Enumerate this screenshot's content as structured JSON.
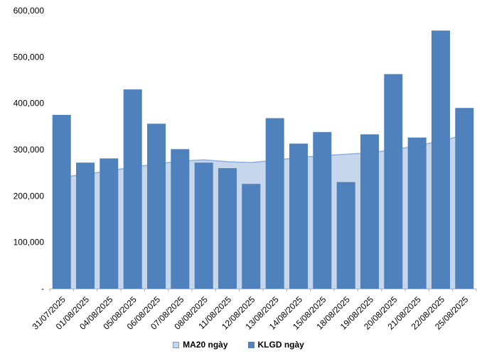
{
  "chart_data": {
    "type": "bar",
    "title": "",
    "categories": [
      "31/07/2025",
      "01/08/2025",
      "04/08/2025",
      "05/08/2025",
      "06/08/2025",
      "07/08/2025",
      "08/08/2025",
      "11/08/2025",
      "12/08/2025",
      "13/08/2025",
      "14/08/2025",
      "15/08/2025",
      "18/08/2025",
      "19/08/2025",
      "20/08/2025",
      "21/08/2025",
      "22/08/2025",
      "25/08/2025"
    ],
    "series": [
      {
        "name": "MA20 ngày",
        "kind": "area",
        "fill": "#c6d6ec",
        "line": "#8fb2dc",
        "values": [
          240000,
          247000,
          254000,
          262000,
          269000,
          275000,
          278000,
          274000,
          272000,
          277000,
          283000,
          287000,
          290000,
          293000,
          300000,
          308000,
          319000,
          331000
        ]
      },
      {
        "name": "KLGD ngày",
        "kind": "bar",
        "fill": "#4f81bd",
        "values": [
          375000,
          272000,
          281000,
          430000,
          356000,
          301000,
          272000,
          260000,
          226000,
          368000,
          313000,
          338000,
          230000,
          333000,
          463000,
          326000,
          557000,
          390000
        ]
      }
    ],
    "xlabel": "",
    "ylabel": "",
    "ylim": [
      0,
      600000
    ],
    "ytick_step": 100000,
    "ytick_labels": [
      "-",
      "100,000",
      "200,000",
      "300,000",
      "400,000",
      "500,000",
      "600,000"
    ],
    "xtick_rotation": -45,
    "grid": false,
    "legend_position": "bottom",
    "axis_color": "#b3b3b3"
  },
  "legend": {
    "items": [
      {
        "label": "MA20 ngày",
        "swatch_fill": "#c6d6ec",
        "swatch_border": "#7f9db9"
      },
      {
        "label": "KLGD ngày",
        "swatch_fill": "#4f81bd",
        "swatch_border": "#4f81bd"
      }
    ]
  }
}
